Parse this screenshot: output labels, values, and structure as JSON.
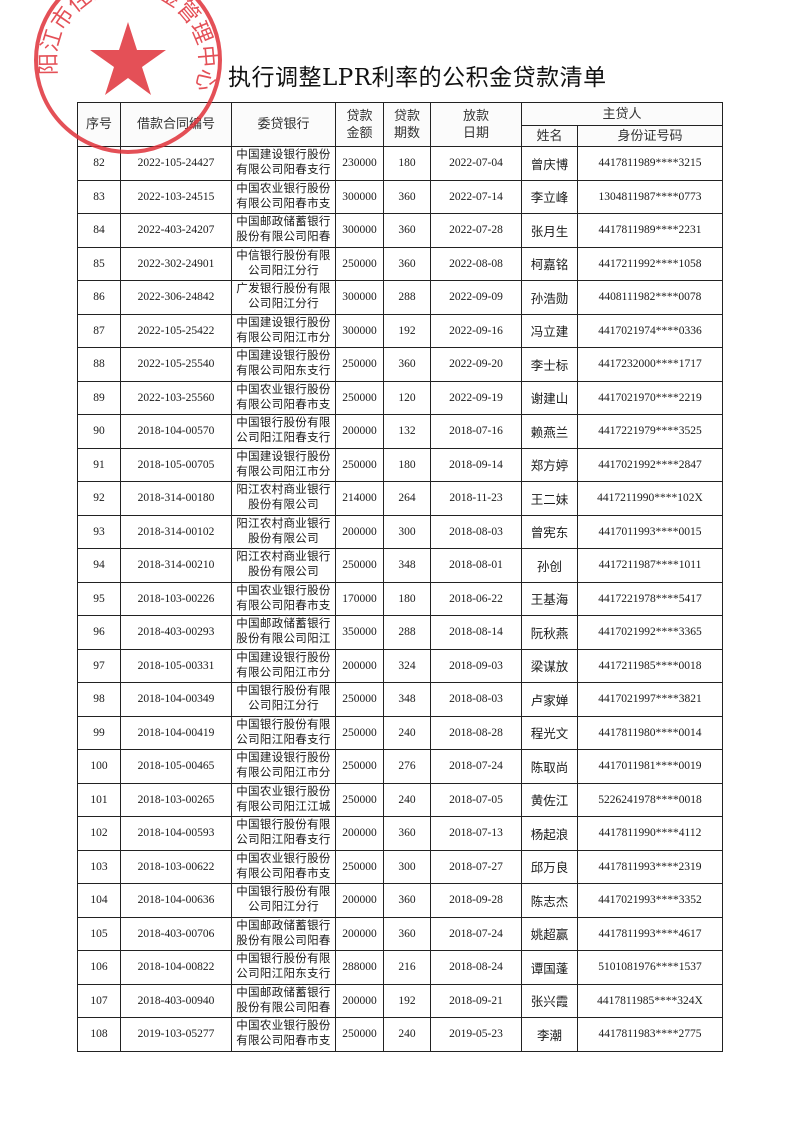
{
  "title": "执行调整LPR利率的公积金贷款清单",
  "stamp": {
    "text": "阳江市住房公积金管理中心",
    "color": "#e0323a"
  },
  "headers": {
    "seq": "序号",
    "contract": "借款合同编号",
    "bank": "委贷银行",
    "amount": "贷款金额",
    "term": "贷款期数",
    "date": "放款日期",
    "borrower": "主贷人",
    "name": "姓名",
    "id": "身份证号码"
  },
  "rows": [
    {
      "seq": "82",
      "contract": "2022-105-24427",
      "bank": "中国建设银行股份有限公司阳春支行",
      "amount": "230000",
      "term": "180",
      "date": "2022-07-04",
      "name": "曾庆博",
      "id": "4417811989****3215"
    },
    {
      "seq": "83",
      "contract": "2022-103-24515",
      "bank": "中国农业银行股份有限公司阳春市支",
      "amount": "300000",
      "term": "360",
      "date": "2022-07-14",
      "name": "李立峰",
      "id": "1304811987****0773"
    },
    {
      "seq": "84",
      "contract": "2022-403-24207",
      "bank": "中国邮政储蓄银行股份有限公司阳春",
      "amount": "300000",
      "term": "360",
      "date": "2022-07-28",
      "name": "张月生",
      "id": "4417811989****2231"
    },
    {
      "seq": "85",
      "contract": "2022-302-24901",
      "bank": "中信银行股份有限公司阳江分行",
      "amount": "250000",
      "term": "360",
      "date": "2022-08-08",
      "name": "柯嘉铭",
      "id": "4417211992****1058"
    },
    {
      "seq": "86",
      "contract": "2022-306-24842",
      "bank": "广发银行股份有限公司阳江分行",
      "amount": "300000",
      "term": "288",
      "date": "2022-09-09",
      "name": "孙浩勋",
      "id": "4408111982****0078"
    },
    {
      "seq": "87",
      "contract": "2022-105-25422",
      "bank": "中国建设银行股份有限公司阳江市分",
      "amount": "300000",
      "term": "192",
      "date": "2022-09-16",
      "name": "冯立建",
      "id": "4417021974****0336"
    },
    {
      "seq": "88",
      "contract": "2022-105-25540",
      "bank": "中国建设银行股份有限公司阳东支行",
      "amount": "250000",
      "term": "360",
      "date": "2022-09-20",
      "name": "李士标",
      "id": "4417232000****1717"
    },
    {
      "seq": "89",
      "contract": "2022-103-25560",
      "bank": "中国农业银行股份有限公司阳春市支",
      "amount": "250000",
      "term": "120",
      "date": "2022-09-19",
      "name": "谢建山",
      "id": "4417021970****2219"
    },
    {
      "seq": "90",
      "contract": "2018-104-00570",
      "bank": "中国银行股份有限公司阳江阳春支行",
      "amount": "200000",
      "term": "132",
      "date": "2018-07-16",
      "name": "赖燕兰",
      "id": "4417221979****3525"
    },
    {
      "seq": "91",
      "contract": "2018-105-00705",
      "bank": "中国建设银行股份有限公司阳江市分",
      "amount": "250000",
      "term": "180",
      "date": "2018-09-14",
      "name": "郑方婷",
      "id": "4417021992****2847"
    },
    {
      "seq": "92",
      "contract": "2018-314-00180",
      "bank": "阳江农村商业银行股份有限公司",
      "amount": "214000",
      "term": "264",
      "date": "2018-11-23",
      "name": "王二妹",
      "id": "4417211990****102X"
    },
    {
      "seq": "93",
      "contract": "2018-314-00102",
      "bank": "阳江农村商业银行股份有限公司",
      "amount": "200000",
      "term": "300",
      "date": "2018-08-03",
      "name": "曾宪东",
      "id": "4417011993****0015"
    },
    {
      "seq": "94",
      "contract": "2018-314-00210",
      "bank": "阳江农村商业银行股份有限公司",
      "amount": "250000",
      "term": "348",
      "date": "2018-08-01",
      "name": "孙创",
      "id": "4417211987****1011"
    },
    {
      "seq": "95",
      "contract": "2018-103-00226",
      "bank": "中国农业银行股份有限公司阳春市支",
      "amount": "170000",
      "term": "180",
      "date": "2018-06-22",
      "name": "王基海",
      "id": "4417221978****5417"
    },
    {
      "seq": "96",
      "contract": "2018-403-00293",
      "bank": "中国邮政储蓄银行股份有限公司阳江",
      "amount": "350000",
      "term": "288",
      "date": "2018-08-14",
      "name": "阮秋燕",
      "id": "4417021992****3365"
    },
    {
      "seq": "97",
      "contract": "2018-105-00331",
      "bank": "中国建设银行股份有限公司阳江市分",
      "amount": "200000",
      "term": "324",
      "date": "2018-09-03",
      "name": "梁谋放",
      "id": "4417211985****0018"
    },
    {
      "seq": "98",
      "contract": "2018-104-00349",
      "bank": "中国银行股份有限公司阳江分行",
      "amount": "250000",
      "term": "348",
      "date": "2018-08-03",
      "name": "卢家婵",
      "id": "4417021997****3821"
    },
    {
      "seq": "99",
      "contract": "2018-104-00419",
      "bank": "中国银行股份有限公司阳江阳春支行",
      "amount": "250000",
      "term": "240",
      "date": "2018-08-28",
      "name": "程光文",
      "id": "4417811980****0014"
    },
    {
      "seq": "100",
      "contract": "2018-105-00465",
      "bank": "中国建设银行股份有限公司阳江市分",
      "amount": "250000",
      "term": "276",
      "date": "2018-07-24",
      "name": "陈取尚",
      "id": "4417011981****0019"
    },
    {
      "seq": "101",
      "contract": "2018-103-00265",
      "bank": "中国农业银行股份有限公司阳江江城",
      "amount": "250000",
      "term": "240",
      "date": "2018-07-05",
      "name": "黄佐江",
      "id": "5226241978****0018"
    },
    {
      "seq": "102",
      "contract": "2018-104-00593",
      "bank": "中国银行股份有限公司阳江阳春支行",
      "amount": "200000",
      "term": "360",
      "date": "2018-07-13",
      "name": "杨起浪",
      "id": "4417811990****4112"
    },
    {
      "seq": "103",
      "contract": "2018-103-00622",
      "bank": "中国农业银行股份有限公司阳春市支",
      "amount": "250000",
      "term": "300",
      "date": "2018-07-27",
      "name": "邱万良",
      "id": "4417811993****2319"
    },
    {
      "seq": "104",
      "contract": "2018-104-00636",
      "bank": "中国银行股份有限公司阳江分行",
      "amount": "200000",
      "term": "360",
      "date": "2018-09-28",
      "name": "陈志杰",
      "id": "4417021993****3352"
    },
    {
      "seq": "105",
      "contract": "2018-403-00706",
      "bank": "中国邮政储蓄银行股份有限公司阳春",
      "amount": "200000",
      "term": "360",
      "date": "2018-07-24",
      "name": "姚超赢",
      "id": "4417811993****4617"
    },
    {
      "seq": "106",
      "contract": "2018-104-00822",
      "bank": "中国银行股份有限公司阳江阳东支行",
      "amount": "288000",
      "term": "216",
      "date": "2018-08-24",
      "name": "谭国蓬",
      "id": "5101081976****1537"
    },
    {
      "seq": "107",
      "contract": "2018-403-00940",
      "bank": "中国邮政储蓄银行股份有限公司阳春",
      "amount": "200000",
      "term": "192",
      "date": "2018-09-21",
      "name": "张兴霞",
      "id": "4417811985****324X"
    },
    {
      "seq": "108",
      "contract": "2019-103-05277",
      "bank": "中国农业银行股份有限公司阳春市支",
      "amount": "250000",
      "term": "240",
      "date": "2019-05-23",
      "name": "李潮",
      "id": "4417811983****2775"
    }
  ]
}
